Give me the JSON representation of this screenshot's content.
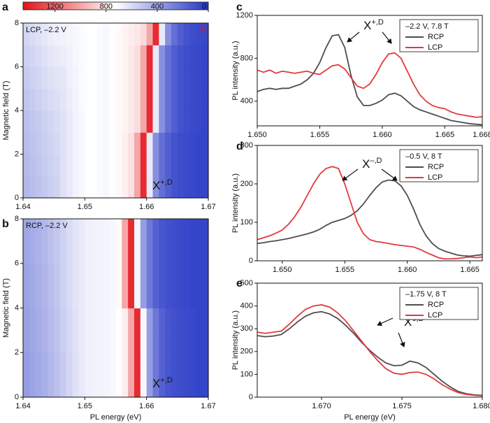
{
  "chart_data": [
    {
      "type": "heatmap",
      "panel": "a",
      "label": "LCP, –2.2 V",
      "ylabel": "Magnetic field (T)",
      "annotation": "X",
      "annotation_sup": "+,D",
      "xlim": [
        1.64,
        1.67
      ],
      "xticks": [
        1.64,
        1.65,
        1.66,
        1.67
      ],
      "ylim": [
        0,
        8
      ],
      "yticks": [
        0,
        2,
        4,
        6,
        8
      ],
      "zlim": [
        0,
        1450
      ],
      "colorbar_ticks": [
        1200,
        800,
        400,
        0
      ],
      "colorbar_reversed": true,
      "colormap": [
        "#2334c4",
        "#ffffff",
        "#e3141b"
      ],
      "x": [
        1.6405,
        1.6415,
        1.6425,
        1.6435,
        1.6445,
        1.6455,
        1.6465,
        1.6475,
        1.6485,
        1.6495,
        1.6505,
        1.6515,
        1.6525,
        1.6535,
        1.6545,
        1.6555,
        1.6565,
        1.6575,
        1.6585,
        1.6595,
        1.6605,
        1.6615,
        1.6625,
        1.6635,
        1.6645,
        1.6655,
        1.6665,
        1.6675,
        1.6685,
        1.6695
      ],
      "y": [
        0.5,
        1.5,
        2.5,
        3.5,
        4.5,
        5.5,
        6.5,
        7.5
      ],
      "z": [
        [
          470,
          490,
          510,
          530,
          550,
          570,
          620,
          650,
          680,
          700,
          720,
          720,
          710,
          700,
          720,
          740,
          770,
          820,
          1000,
          1380,
          650,
          330,
          210,
          150,
          110,
          90,
          80,
          70,
          60,
          60
        ],
        [
          480,
          500,
          520,
          540,
          560,
          580,
          620,
          650,
          680,
          700,
          720,
          720,
          710,
          700,
          720,
          740,
          770,
          820,
          1000,
          1380,
          650,
          330,
          210,
          150,
          110,
          90,
          80,
          70,
          60,
          60
        ],
        [
          490,
          510,
          530,
          550,
          570,
          590,
          620,
          650,
          680,
          700,
          720,
          720,
          710,
          700,
          720,
          740,
          770,
          820,
          1000,
          1380,
          650,
          330,
          210,
          150,
          110,
          90,
          80,
          70,
          60,
          60
        ],
        [
          500,
          520,
          540,
          560,
          580,
          600,
          620,
          650,
          680,
          700,
          720,
          720,
          710,
          700,
          720,
          740,
          760,
          790,
          830,
          1000,
          1380,
          650,
          330,
          210,
          150,
          110,
          90,
          80,
          70,
          60
        ],
        [
          520,
          540,
          560,
          580,
          600,
          610,
          630,
          660,
          690,
          710,
          720,
          720,
          710,
          700,
          720,
          740,
          760,
          790,
          830,
          1000,
          1380,
          650,
          330,
          210,
          150,
          110,
          90,
          80,
          70,
          60
        ],
        [
          540,
          560,
          580,
          600,
          620,
          630,
          640,
          670,
          690,
          710,
          720,
          720,
          710,
          700,
          720,
          740,
          760,
          790,
          830,
          1000,
          1380,
          650,
          330,
          210,
          150,
          110,
          90,
          80,
          70,
          60
        ],
        [
          560,
          580,
          600,
          620,
          640,
          650,
          660,
          680,
          700,
          710,
          720,
          720,
          710,
          700,
          720,
          740,
          760,
          790,
          830,
          1000,
          1380,
          650,
          330,
          210,
          150,
          110,
          90,
          80,
          70,
          60
        ],
        [
          580,
          600,
          620,
          640,
          660,
          670,
          680,
          690,
          700,
          710,
          720,
          720,
          710,
          700,
          720,
          740,
          760,
          780,
          800,
          840,
          1000,
          1380,
          650,
          330,
          210,
          150,
          110,
          90,
          80,
          70
        ]
      ]
    },
    {
      "type": "heatmap",
      "panel": "b",
      "label": "RCP, –2.2 V",
      "ylabel": "Magnetic field (T)",
      "xlabel": "PL energy (eV)",
      "annotation": "X",
      "annotation_sup": "+,D",
      "xlim": [
        1.64,
        1.67
      ],
      "xticks": [
        1.64,
        1.65,
        1.66,
        1.67
      ],
      "ylim": [
        0,
        8
      ],
      "yticks": [
        0,
        2,
        4,
        6,
        8
      ],
      "zlim": [
        0,
        1450
      ],
      "colormap": [
        "#2334c4",
        "#ffffff",
        "#e3141b"
      ],
      "x": [
        1.6405,
        1.6415,
        1.6425,
        1.6435,
        1.6445,
        1.6455,
        1.6465,
        1.6475,
        1.6485,
        1.6495,
        1.6505,
        1.6515,
        1.6525,
        1.6535,
        1.6545,
        1.6555,
        1.6565,
        1.6575,
        1.6585,
        1.6595,
        1.6605,
        1.6615,
        1.6625,
        1.6635,
        1.6645,
        1.6655,
        1.6665,
        1.6675,
        1.6685,
        1.6695
      ],
      "y": [
        0.5,
        1.5,
        2.5,
        3.5,
        4.5,
        5.5,
        6.5,
        7.5
      ],
      "z": [
        [
          380,
          400,
          420,
          440,
          470,
          500,
          540,
          580,
          620,
          650,
          670,
          680,
          680,
          690,
          700,
          730,
          780,
          1000,
          1380,
          700,
          380,
          240,
          160,
          120,
          100,
          90,
          80,
          70,
          60,
          60
        ],
        [
          380,
          400,
          420,
          440,
          470,
          500,
          540,
          580,
          620,
          650,
          670,
          680,
          680,
          690,
          700,
          730,
          780,
          1000,
          1380,
          700,
          380,
          240,
          160,
          120,
          100,
          90,
          80,
          70,
          60,
          60
        ],
        [
          390,
          410,
          430,
          450,
          480,
          510,
          550,
          590,
          620,
          650,
          670,
          680,
          680,
          690,
          700,
          730,
          780,
          1000,
          1380,
          700,
          380,
          240,
          160,
          120,
          100,
          90,
          80,
          70,
          60,
          60
        ],
        [
          390,
          410,
          430,
          450,
          480,
          510,
          550,
          590,
          620,
          650,
          670,
          680,
          680,
          690,
          700,
          730,
          780,
          1000,
          1380,
          700,
          380,
          240,
          160,
          120,
          100,
          90,
          80,
          70,
          60,
          60
        ],
        [
          400,
          420,
          440,
          460,
          490,
          520,
          560,
          600,
          630,
          650,
          670,
          680,
          680,
          690,
          700,
          740,
          1000,
          1380,
          700,
          380,
          240,
          160,
          120,
          100,
          90,
          80,
          70,
          60,
          60,
          60
        ],
        [
          400,
          420,
          440,
          460,
          490,
          520,
          560,
          600,
          630,
          650,
          670,
          680,
          680,
          690,
          700,
          740,
          1000,
          1380,
          700,
          380,
          240,
          160,
          120,
          100,
          90,
          80,
          70,
          60,
          60,
          60
        ],
        [
          410,
          430,
          450,
          470,
          500,
          530,
          560,
          600,
          630,
          650,
          670,
          680,
          680,
          690,
          700,
          740,
          1000,
          1380,
          700,
          380,
          240,
          160,
          120,
          100,
          90,
          80,
          70,
          60,
          60,
          60
        ],
        [
          410,
          430,
          450,
          470,
          500,
          530,
          560,
          600,
          630,
          650,
          670,
          680,
          680,
          690,
          700,
          740,
          1000,
          1380,
          700,
          380,
          240,
          160,
          120,
          100,
          90,
          80,
          70,
          60,
          60,
          60
        ]
      ]
    },
    {
      "type": "line",
      "panel": "c",
      "ylabel": "PL intensity (a.u.)",
      "legend_title": "–2.2 V, 7.8 T",
      "legend": "upper right",
      "annotation": "X",
      "annotation_sup": "+,D",
      "xlim": [
        1.65,
        1.668
      ],
      "xticks": [
        {
          "value": 1.65,
          "label": "1.650"
        },
        1.655,
        {
          "value": 1.66,
          "label": "1.660"
        },
        1.665,
        1.668
      ],
      "ylim": [
        170,
        1200
      ],
      "yticks": [
        400,
        800,
        1200
      ],
      "x": [
        1.65,
        1.6505,
        1.651,
        1.6515,
        1.652,
        1.6525,
        1.653,
        1.6535,
        1.654,
        1.6545,
        1.655,
        1.6555,
        1.656,
        1.6565,
        1.657,
        1.6575,
        1.658,
        1.6585,
        1.659,
        1.6595,
        1.66,
        1.6605,
        1.661,
        1.6615,
        1.662,
        1.6625,
        1.663,
        1.6635,
        1.664,
        1.6645,
        1.665,
        1.6655,
        1.666,
        1.6665,
        1.667,
        1.6675,
        1.668
      ],
      "series": [
        {
          "name": "RCP",
          "color": "#4d4d4d",
          "values": [
            490,
            510,
            520,
            510,
            520,
            520,
            540,
            560,
            600,
            660,
            760,
            900,
            1010,
            1020,
            900,
            640,
            440,
            360,
            360,
            380,
            410,
            460,
            475,
            450,
            400,
            350,
            320,
            300,
            280,
            260,
            240,
            220,
            210,
            200,
            190,
            185,
            180
          ]
        },
        {
          "name": "LCP",
          "color": "#e5383b",
          "values": [
            690,
            670,
            690,
            660,
            680,
            670,
            660,
            670,
            680,
            660,
            650,
            690,
            730,
            740,
            700,
            620,
            540,
            520,
            560,
            650,
            760,
            840,
            850,
            800,
            680,
            560,
            460,
            400,
            360,
            340,
            330,
            300,
            280,
            270,
            260,
            250,
            255
          ]
        }
      ]
    },
    {
      "type": "line",
      "panel": "d",
      "ylabel": "PL intensity (a.u.)",
      "legend_title": "–0.5 V, 8 T",
      "legend": "upper right",
      "annotation": "X",
      "annotation_sup": "–,D",
      "xlim": [
        1.648,
        1.666
      ],
      "xticks": [
        {
          "value": 1.65,
          "label": "1.650"
        },
        1.655,
        {
          "value": 1.66,
          "label": "1.660"
        },
        1.665
      ],
      "ylim": [
        0,
        300
      ],
      "yticks": [
        0,
        100,
        200,
        300
      ],
      "x": [
        1.648,
        1.6485,
        1.649,
        1.6495,
        1.65,
        1.6505,
        1.651,
        1.6515,
        1.652,
        1.6525,
        1.653,
        1.6535,
        1.654,
        1.6545,
        1.655,
        1.6555,
        1.656,
        1.6565,
        1.657,
        1.6575,
        1.658,
        1.6585,
        1.659,
        1.6595,
        1.66,
        1.6605,
        1.661,
        1.6615,
        1.662,
        1.6625,
        1.663,
        1.6635,
        1.664,
        1.6645,
        1.665,
        1.6655,
        1.666
      ],
      "series": [
        {
          "name": "RCP",
          "color": "#4d4d4d",
          "values": [
            45,
            47,
            50,
            52,
            55,
            58,
            62,
            66,
            70,
            75,
            82,
            92,
            100,
            105,
            110,
            118,
            130,
            148,
            170,
            190,
            205,
            210,
            208,
            195,
            170,
            135,
            95,
            65,
            45,
            32,
            25,
            20,
            15,
            13,
            12,
            14,
            16
          ]
        },
        {
          "name": "LCP",
          "color": "#e5383b",
          "values": [
            55,
            60,
            65,
            72,
            80,
            95,
            115,
            140,
            170,
            200,
            225,
            240,
            245,
            240,
            200,
            150,
            100,
            70,
            55,
            50,
            48,
            45,
            42,
            40,
            38,
            36,
            30,
            22,
            15,
            8,
            5,
            5,
            6,
            8,
            10,
            8,
            10
          ]
        }
      ]
    },
    {
      "type": "line",
      "panel": "e",
      "ylabel": "PL intensity (a.u.)",
      "xlabel": "PL energy (eV)",
      "legend_title": "–1.75 V, 8 T",
      "legend": "upper right",
      "annotation": "X",
      "annotation_sup": "0,D",
      "xlim": [
        1.666,
        1.68
      ],
      "xticks": [
        {
          "value": 1.67,
          "label": "1.670"
        },
        1.675,
        {
          "value": 1.68,
          "label": "1.680"
        }
      ],
      "ylim": [
        0,
        500
      ],
      "yticks": [
        0,
        100,
        200,
        300,
        400,
        500
      ],
      "x": [
        1.666,
        1.6665,
        1.667,
        1.6675,
        1.668,
        1.6685,
        1.669,
        1.6695,
        1.67,
        1.6705,
        1.671,
        1.6715,
        1.672,
        1.6725,
        1.673,
        1.6735,
        1.674,
        1.6745,
        1.675,
        1.6755,
        1.676,
        1.6765,
        1.677,
        1.6775,
        1.678,
        1.6785,
        1.679,
        1.6795,
        1.68
      ],
      "series": [
        {
          "name": "RCP",
          "color": "#4d4d4d",
          "values": [
            270,
            265,
            268,
            275,
            300,
            330,
            355,
            370,
            375,
            365,
            345,
            315,
            280,
            240,
            205,
            175,
            150,
            138,
            140,
            158,
            150,
            130,
            100,
            70,
            45,
            25,
            15,
            10,
            8
          ]
        },
        {
          "name": "LCP",
          "color": "#e5383b",
          "values": [
            285,
            280,
            285,
            290,
            320,
            355,
            385,
            400,
            405,
            395,
            370,
            335,
            290,
            245,
            200,
            160,
            125,
            105,
            100,
            108,
            110,
            100,
            80,
            55,
            35,
            20,
            12,
            8,
            6
          ]
        }
      ]
    }
  ]
}
